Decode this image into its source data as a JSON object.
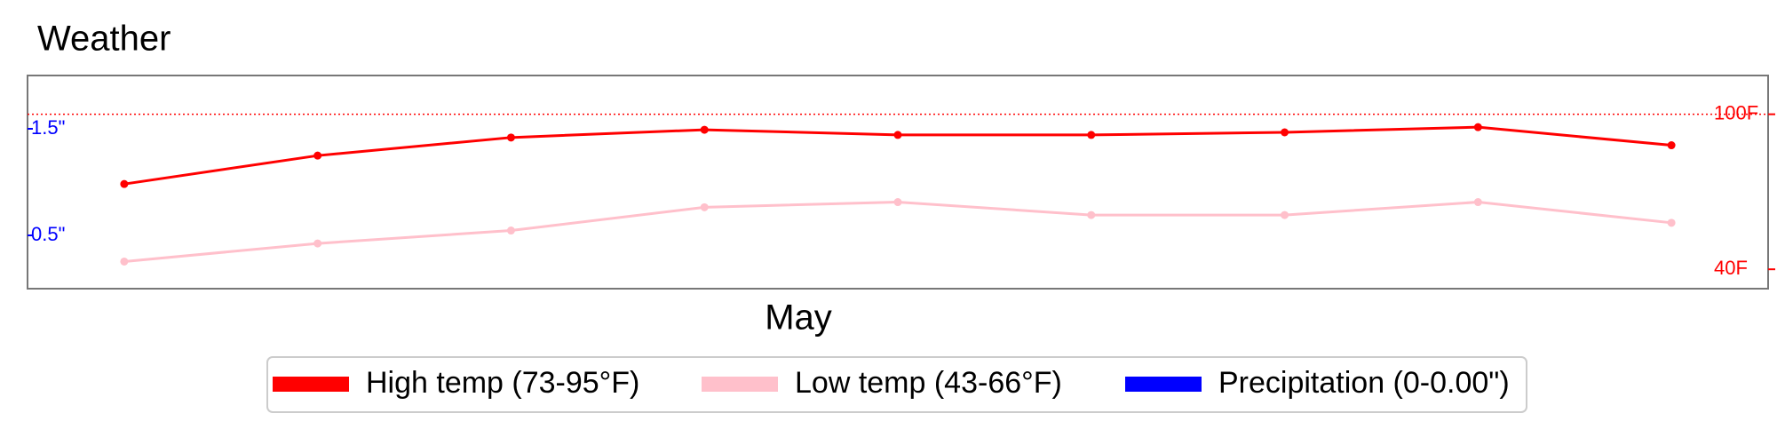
{
  "chart_data": {
    "type": "line",
    "title": "Weather",
    "xlabel": "May",
    "categories": [
      null,
      null,
      null,
      null,
      null,
      null,
      null,
      null,
      null
    ],
    "series": [
      {
        "name": "High temp (73-95°F)",
        "color": "#ff0000",
        "values": [
          73,
          84,
          91,
          94,
          92,
          92,
          93,
          95,
          88
        ]
      },
      {
        "name": "Low temp (43-66°F)",
        "color": "#ffc0cb",
        "values": [
          43,
          50,
          55,
          64,
          66,
          61,
          61,
          66,
          58
        ]
      },
      {
        "name": "Precipitation (0-0.00\")",
        "color": "#0000ff",
        "axis": "y2",
        "values": [
          0,
          0,
          0,
          0,
          0,
          0,
          0,
          0,
          0
        ]
      }
    ],
    "ylim": [
      32.5,
      115
    ],
    "yticks": [
      {
        "value": 40,
        "label": "40F"
      },
      {
        "value": 100,
        "label": "100F"
      }
    ],
    "y2lim": [
      0,
      2
    ],
    "y2ticks": [
      {
        "value": 0.5,
        "label": "0.5\""
      },
      {
        "value": 1.5,
        "label": "1.5\""
      }
    ],
    "hline": 100,
    "legend": "bottom"
  }
}
